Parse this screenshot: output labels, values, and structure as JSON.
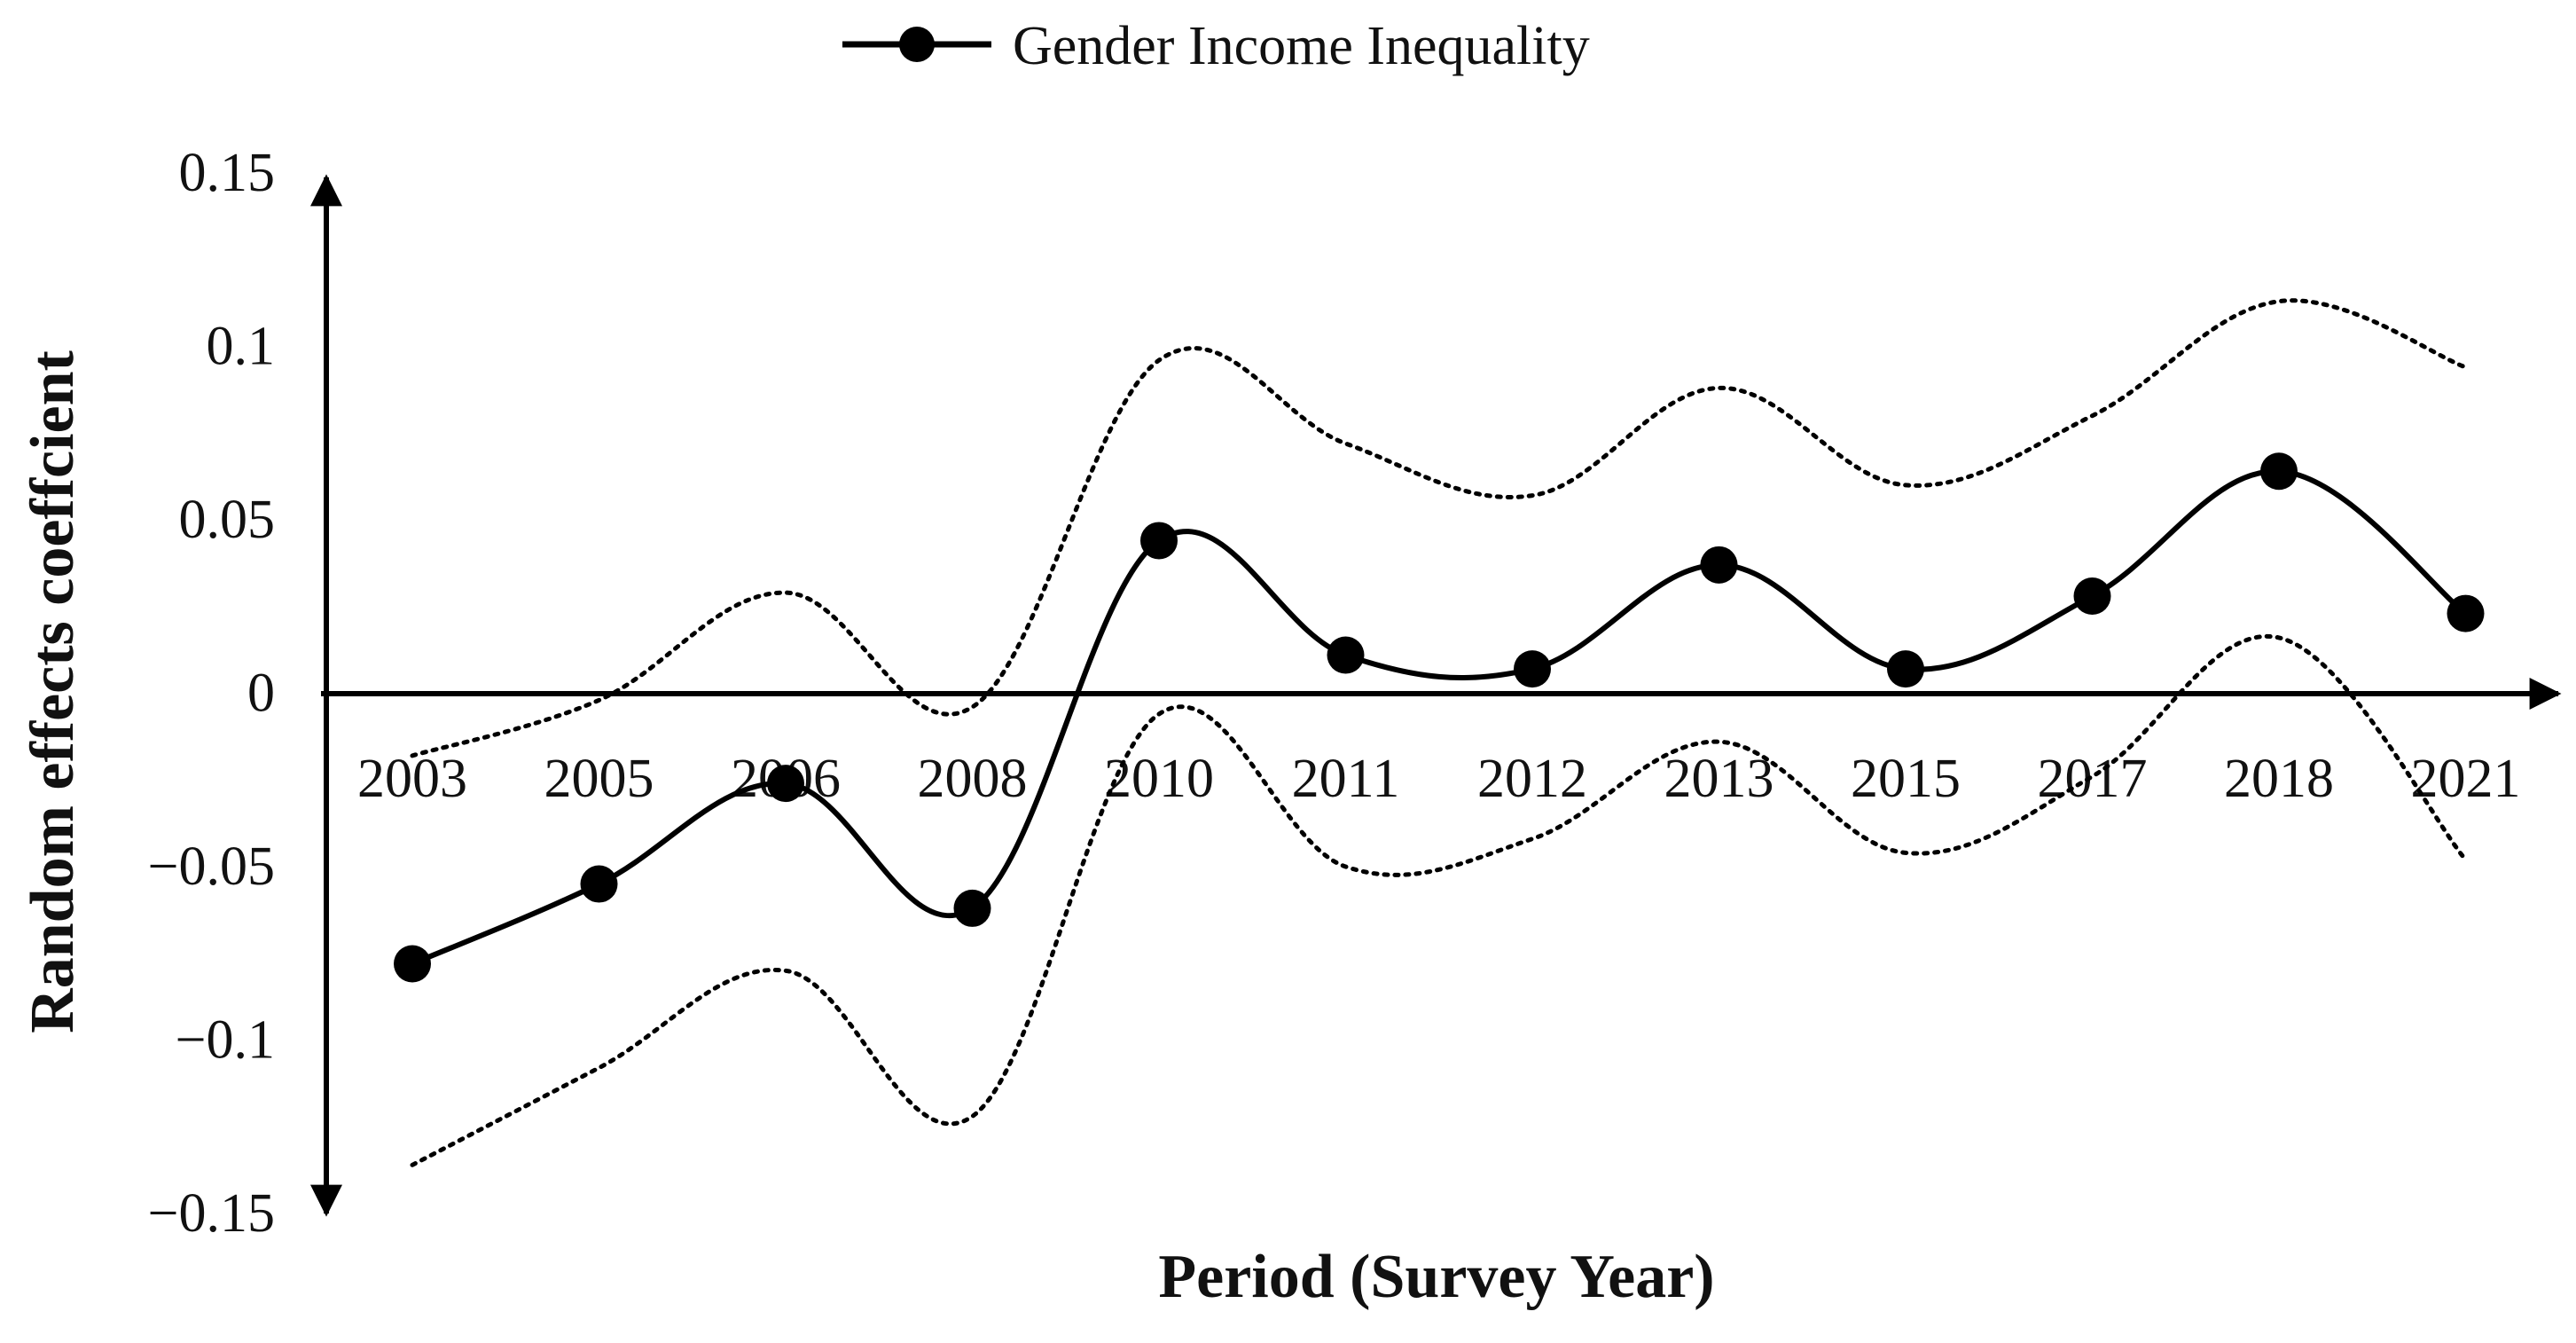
{
  "chart_data": {
    "type": "line",
    "title": "",
    "xlabel": "Period (Survey Year)",
    "ylabel": "Random effects coeffcient",
    "categories": [
      "2003",
      "2005",
      "2006",
      "2008",
      "2010",
      "2011",
      "2012",
      "2013",
      "2015",
      "2017",
      "2018",
      "2021"
    ],
    "series": [
      {
        "name": "Gender Income Inequality",
        "values": [
          -0.078,
          -0.055,
          -0.026,
          -0.062,
          0.044,
          0.011,
          0.007,
          0.037,
          0.007,
          0.028,
          0.064,
          0.023
        ],
        "color": "#000000",
        "marker": "circle"
      }
    ],
    "confidence_band": {
      "upper": [
        -0.018,
        -0.002,
        0.029,
        -0.004,
        0.096,
        0.072,
        0.057,
        0.088,
        0.06,
        0.08,
        0.113,
        0.094
      ],
      "lower": [
        -0.136,
        -0.108,
        -0.08,
        -0.122,
        -0.006,
        -0.05,
        -0.042,
        -0.014,
        -0.046,
        -0.024,
        0.016,
        -0.048
      ],
      "style": "dotted"
    },
    "ylim": [
      -0.15,
      0.15
    ],
    "yticks": [
      {
        "value": 0.15,
        "label": "0.15"
      },
      {
        "value": 0.1,
        "label": "0.1"
      },
      {
        "value": 0.05,
        "label": "0.05"
      },
      {
        "value": 0,
        "label": "0"
      },
      {
        "value": -0.05,
        "label": "−0.05"
      },
      {
        "value": -0.1,
        "label": "−0.1"
      },
      {
        "value": -0.15,
        "label": "−0.15"
      }
    ],
    "grid": false,
    "legend_position": "top-center"
  }
}
